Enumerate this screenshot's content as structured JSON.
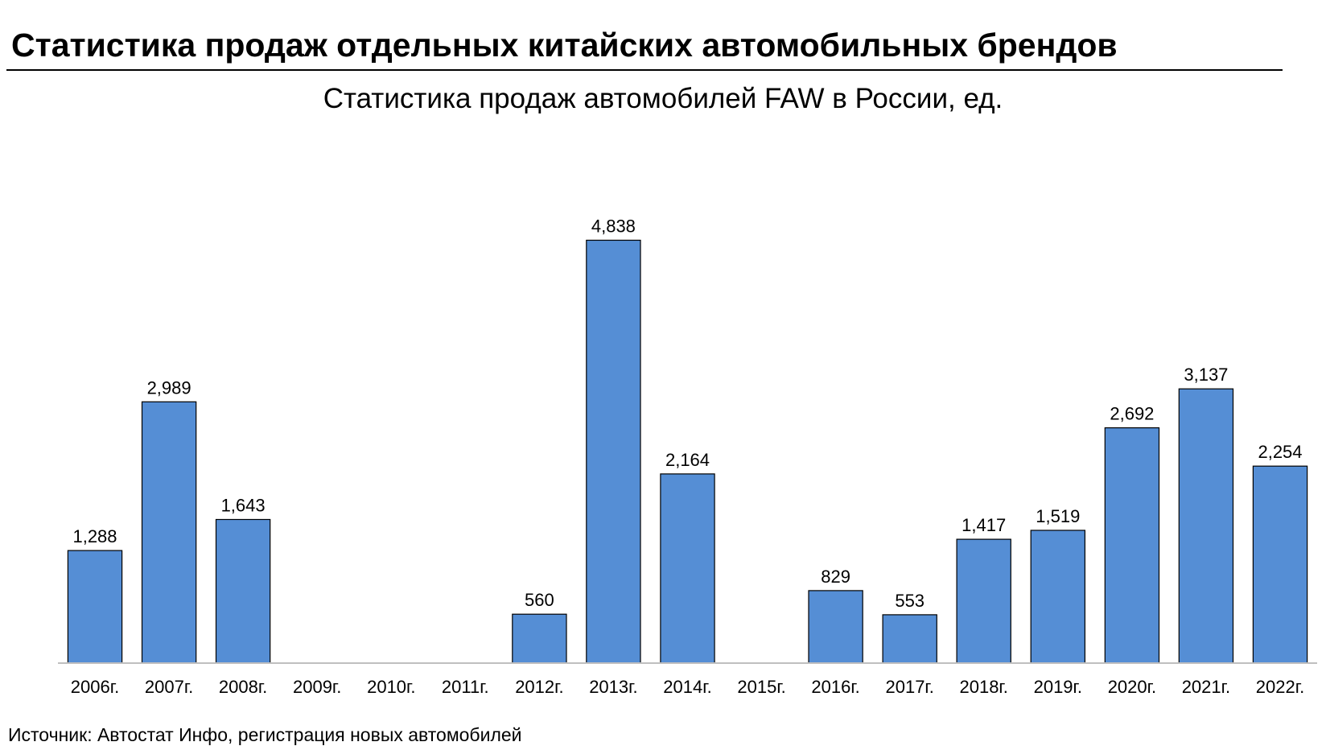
{
  "page": {
    "heading": "Статистика продаж отдельных китайских автомобильных брендов",
    "source": "Источник: Автостат Инфо, регистрация новых автомобилей"
  },
  "chart_data": {
    "type": "bar",
    "title": "Статистика продаж автомобилей FAW в России, ед.",
    "xlabel": "",
    "ylabel": "",
    "categories": [
      "2006г.",
      "2007г.",
      "2008г.",
      "2009г.",
      "2010г.",
      "2011г.",
      "2012г.",
      "2013г.",
      "2014г.",
      "2015г.",
      "2016г.",
      "2017г.",
      "2018г.",
      "2019г.",
      "2020г.",
      "2021г.",
      "2022г."
    ],
    "values": [
      1288,
      2989,
      1643,
      null,
      null,
      null,
      560,
      4838,
      2164,
      null,
      829,
      553,
      1417,
      1519,
      2692,
      3137,
      2254
    ],
    "data_labels": [
      "1,288",
      "2,989",
      "1,643",
      "",
      "",
      "",
      "560",
      "4,838",
      "2,164",
      "",
      "829",
      "553",
      "1,417",
      "1,519",
      "2,692",
      "3,137",
      "2,254"
    ],
    "ylim": [
      0,
      5100
    ],
    "grid": false,
    "legend": "none",
    "colors": {
      "bar_fill": "#558ed5",
      "bar_stroke": "#000000",
      "axis": "#bfbfbf"
    }
  }
}
